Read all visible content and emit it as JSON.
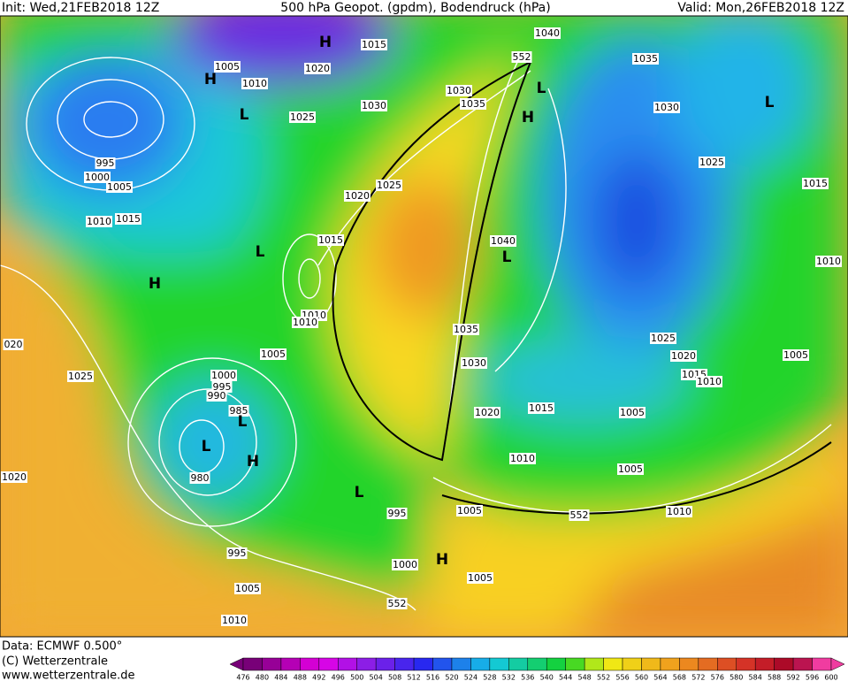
{
  "header": {
    "init": "Init: Wed,21FEB2018 12Z",
    "title": "500 hPa Geopot. (gpdm), Bodendruck (hPa)",
    "valid": "Valid: Mon,26FEB2018 12Z"
  },
  "map": {
    "isobar_labels": [
      "1005",
      "1010",
      "1015",
      "1020",
      "1025",
      "1030",
      "1030",
      "1035",
      "1040",
      "552",
      "1035",
      "1030",
      "1025",
      "1015",
      "1010",
      "995",
      "1000",
      "1005",
      "1010",
      "1015",
      "1020",
      "1025",
      "1015",
      "1040",
      "1010",
      "1010",
      "1035",
      "1030",
      "1025",
      "1020",
      "1015",
      "1010",
      "1005",
      "1005",
      "1000",
      "995",
      "990",
      "985",
      "980",
      "1025",
      "020",
      "1020",
      "1020",
      "1015",
      "1005",
      "1010",
      "1005",
      "995",
      "1005",
      "552",
      "1010",
      "1000",
      "995",
      "1005",
      "1005",
      "552",
      "1010"
    ],
    "pressure_centers": [
      "H",
      "H",
      "L",
      "L",
      "H",
      "L",
      "L",
      "H",
      "L",
      "L",
      "L",
      "H",
      "L",
      "H"
    ]
  },
  "footer": {
    "data": "Data: ECMWF  0.500°",
    "copyright": "(C) Wetterzentrale",
    "url": "www.wetterzentrale.de"
  },
  "colorbar": {
    "ticks": [
      476,
      480,
      484,
      488,
      492,
      496,
      500,
      504,
      508,
      512,
      516,
      520,
      524,
      528,
      532,
      536,
      540,
      544,
      548,
      552,
      556,
      560,
      564,
      568,
      572,
      576,
      580,
      584,
      588,
      592,
      596,
      600
    ]
  }
}
